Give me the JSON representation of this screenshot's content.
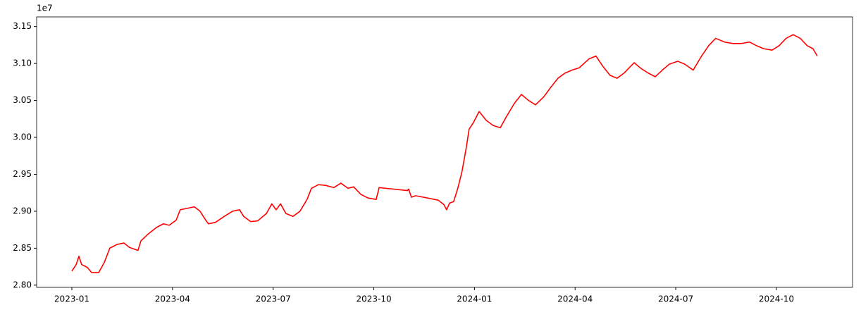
{
  "chart_data": {
    "type": "line",
    "y_offset_label": "1e7",
    "x": [
      0,
      0.13,
      0.21,
      0.29,
      0.46,
      0.59,
      0.8,
      0.97,
      1.13,
      1.34,
      1.55,
      1.72,
      1.97,
      2.06,
      2.27,
      2.52,
      2.73,
      2.9,
      3.11,
      3.23,
      3.44,
      3.65,
      3.82,
      3.99,
      4.07,
      4.28,
      4.54,
      4.79,
      5.0,
      5.12,
      5.33,
      5.54,
      5.8,
      5.96,
      6.09,
      6.22,
      6.38,
      6.59,
      6.8,
      7.01,
      7.14,
      7.35,
      7.56,
      7.81,
      8.02,
      8.23,
      8.4,
      8.61,
      8.82,
      9.07,
      9.16,
      10.0,
      10.04,
      10.12,
      10.25,
      10.92,
      11.09,
      11.17,
      11.26,
      11.38,
      11.51,
      11.63,
      11.76,
      11.84,
      11.97,
      12.14,
      12.35,
      12.56,
      12.77,
      12.94,
      13.19,
      13.4,
      13.61,
      13.82,
      14.07,
      14.28,
      14.49,
      14.7,
      14.91,
      15.12,
      15.41,
      15.62,
      15.83,
      16.04,
      16.25,
      16.46,
      16.76,
      16.97,
      17.18,
      17.39,
      17.6,
      17.81,
      18.06,
      18.27,
      18.52,
      18.77,
      18.98,
      19.19,
      19.45,
      19.7,
      19.95,
      20.2,
      20.41,
      20.62,
      20.87,
      21.08,
      21.29,
      21.5,
      21.71,
      21.92,
      22.09,
      22.22
    ],
    "series": [
      {
        "color": "#ff0000",
        "values": [
          2.819,
          2.828,
          2.839,
          2.828,
          2.824,
          2.817,
          2.817,
          2.831,
          2.85,
          2.855,
          2.857,
          2.851,
          2.847,
          2.86,
          2.869,
          2.878,
          2.883,
          2.881,
          2.888,
          2.902,
          2.904,
          2.906,
          2.9,
          2.888,
          2.883,
          2.885,
          2.893,
          2.9,
          2.902,
          2.893,
          2.886,
          2.887,
          2.897,
          2.91,
          2.902,
          2.91,
          2.897,
          2.893,
          2.9,
          2.916,
          2.931,
          2.936,
          2.935,
          2.932,
          2.938,
          2.931,
          2.933,
          2.923,
          2.918,
          2.916,
          2.932,
          2.928,
          2.93,
          2.919,
          2.921,
          2.915,
          2.909,
          2.902,
          2.911,
          2.913,
          2.932,
          2.954,
          2.987,
          3.011,
          3.02,
          3.035,
          3.023,
          3.016,
          3.013,
          3.027,
          3.046,
          3.058,
          3.05,
          3.044,
          3.055,
          3.068,
          3.08,
          3.087,
          3.091,
          3.094,
          3.106,
          3.11,
          3.096,
          3.084,
          3.08,
          3.087,
          3.101,
          3.093,
          3.087,
          3.082,
          3.091,
          3.099,
          3.103,
          3.099,
          3.091,
          3.11,
          3.124,
          3.134,
          3.129,
          3.127,
          3.127,
          3.129,
          3.124,
          3.12,
          3.118,
          3.124,
          3.134,
          3.139,
          3.134,
          3.124,
          3.12,
          3.11
        ]
      }
    ],
    "xlim": [
      -1.05,
      23.27
    ],
    "xticks": [
      {
        "value": 0,
        "label": "2023-01"
      },
      {
        "value": 3,
        "label": "2023-04"
      },
      {
        "value": 6,
        "label": "2023-07"
      },
      {
        "value": 9,
        "label": "2023-10"
      },
      {
        "value": 12,
        "label": "2024-01"
      },
      {
        "value": 15,
        "label": "2024-04"
      },
      {
        "value": 18,
        "label": "2024-07"
      },
      {
        "value": 21,
        "label": "2024-10"
      }
    ],
    "ylim": [
      2.797,
      3.163
    ],
    "yticks": [
      {
        "value": 2.8,
        "label": "2.80"
      },
      {
        "value": 2.85,
        "label": "2.85"
      },
      {
        "value": 2.9,
        "label": "2.90"
      },
      {
        "value": 2.95,
        "label": "2.95"
      },
      {
        "value": 3.0,
        "label": "3.00"
      },
      {
        "value": 3.05,
        "label": "3.05"
      },
      {
        "value": 3.1,
        "label": "3.10"
      },
      {
        "value": 3.15,
        "label": "3.15"
      }
    ],
    "grid": false
  }
}
